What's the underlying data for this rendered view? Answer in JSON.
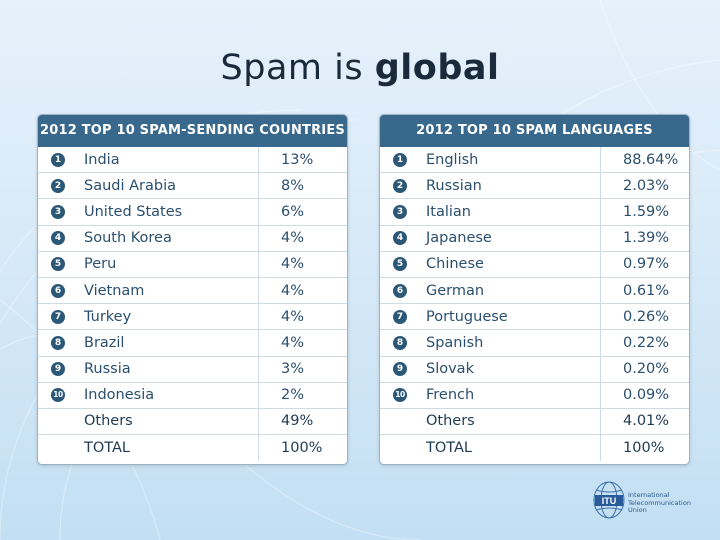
{
  "slide": {
    "title_regular": "Spam is",
    "title_bold": "global"
  },
  "countries_table": {
    "header": "2012 TOP 10 SPAM-SENDING COUNTRIES",
    "rows": [
      {
        "rank": "1",
        "name": "India",
        "value": "13%"
      },
      {
        "rank": "2",
        "name": "Saudi Arabia",
        "value": "8%"
      },
      {
        "rank": "3",
        "name": "United States",
        "value": "6%"
      },
      {
        "rank": "4",
        "name": "South Korea",
        "value": "4%"
      },
      {
        "rank": "5",
        "name": "Peru",
        "value": "4%"
      },
      {
        "rank": "6",
        "name": "Vietnam",
        "value": "4%"
      },
      {
        "rank": "7",
        "name": "Turkey",
        "value": "4%"
      },
      {
        "rank": "8",
        "name": "Brazil",
        "value": "4%"
      },
      {
        "rank": "9",
        "name": "Russia",
        "value": "3%"
      },
      {
        "rank": "10",
        "name": "Indonesia",
        "value": "2%"
      }
    ],
    "others": {
      "name": "Others",
      "value": "49%"
    },
    "total": {
      "name": "TOTAL",
      "value": "100%"
    }
  },
  "languages_table": {
    "header": "2012 TOP 10 SPAM LANGUAGES",
    "rows": [
      {
        "rank": "1",
        "name": "English",
        "value": "88.64%"
      },
      {
        "rank": "2",
        "name": "Russian",
        "value": "2.03%"
      },
      {
        "rank": "3",
        "name": "Italian",
        "value": "1.59%"
      },
      {
        "rank": "4",
        "name": "Japanese",
        "value": "1.39%"
      },
      {
        "rank": "5",
        "name": "Chinese",
        "value": "0.97%"
      },
      {
        "rank": "6",
        "name": "German",
        "value": "0.61%"
      },
      {
        "rank": "7",
        "name": "Portuguese",
        "value": "0.26%"
      },
      {
        "rank": "8",
        "name": "Spanish",
        "value": "0.22%"
      },
      {
        "rank": "9",
        "name": "Slovak",
        "value": "0.20%"
      },
      {
        "rank": "10",
        "name": "French",
        "value": "0.09%"
      }
    ],
    "others": {
      "name": "Others",
      "value": "4.01%"
    },
    "total": {
      "name": "TOTAL",
      "value": "100%"
    }
  },
  "logo": {
    "abbr": "ITU",
    "text_lines": [
      "International",
      "Telecommunication",
      "Union"
    ]
  },
  "colors": {
    "header_bg": "#39688d",
    "badge_bg": "#2c5878",
    "text": "#2b4f6e",
    "background": "#d4e8f7"
  }
}
